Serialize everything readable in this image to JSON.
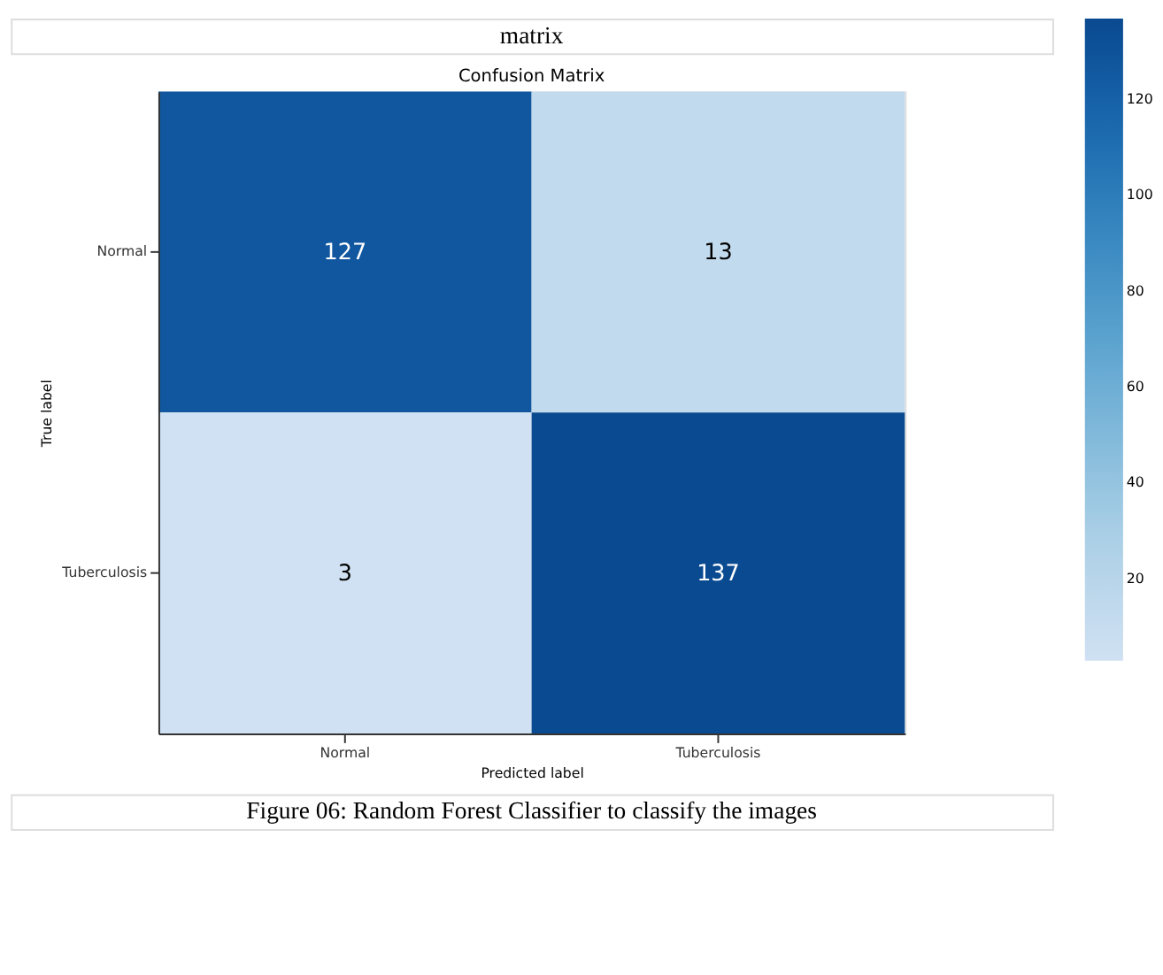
{
  "chart_data": {
    "type": "heatmap",
    "title": "Confusion Matrix",
    "xlabel": "Predicted label",
    "ylabel": "True label",
    "categories": [
      "Normal",
      "Tuberculosis"
    ],
    "y_categories": [
      "Normal",
      "Tuberculosis"
    ],
    "cells": [
      [
        127,
        13
      ],
      [
        3,
        137
      ]
    ],
    "data_labels": true,
    "clim": [
      3,
      137
    ],
    "cticks": [
      20,
      40,
      60,
      80,
      100,
      120
    ],
    "annotations": [
      "matrix",
      "Figure 06: Random Forest Classifier to classify the images"
    ]
  }
}
